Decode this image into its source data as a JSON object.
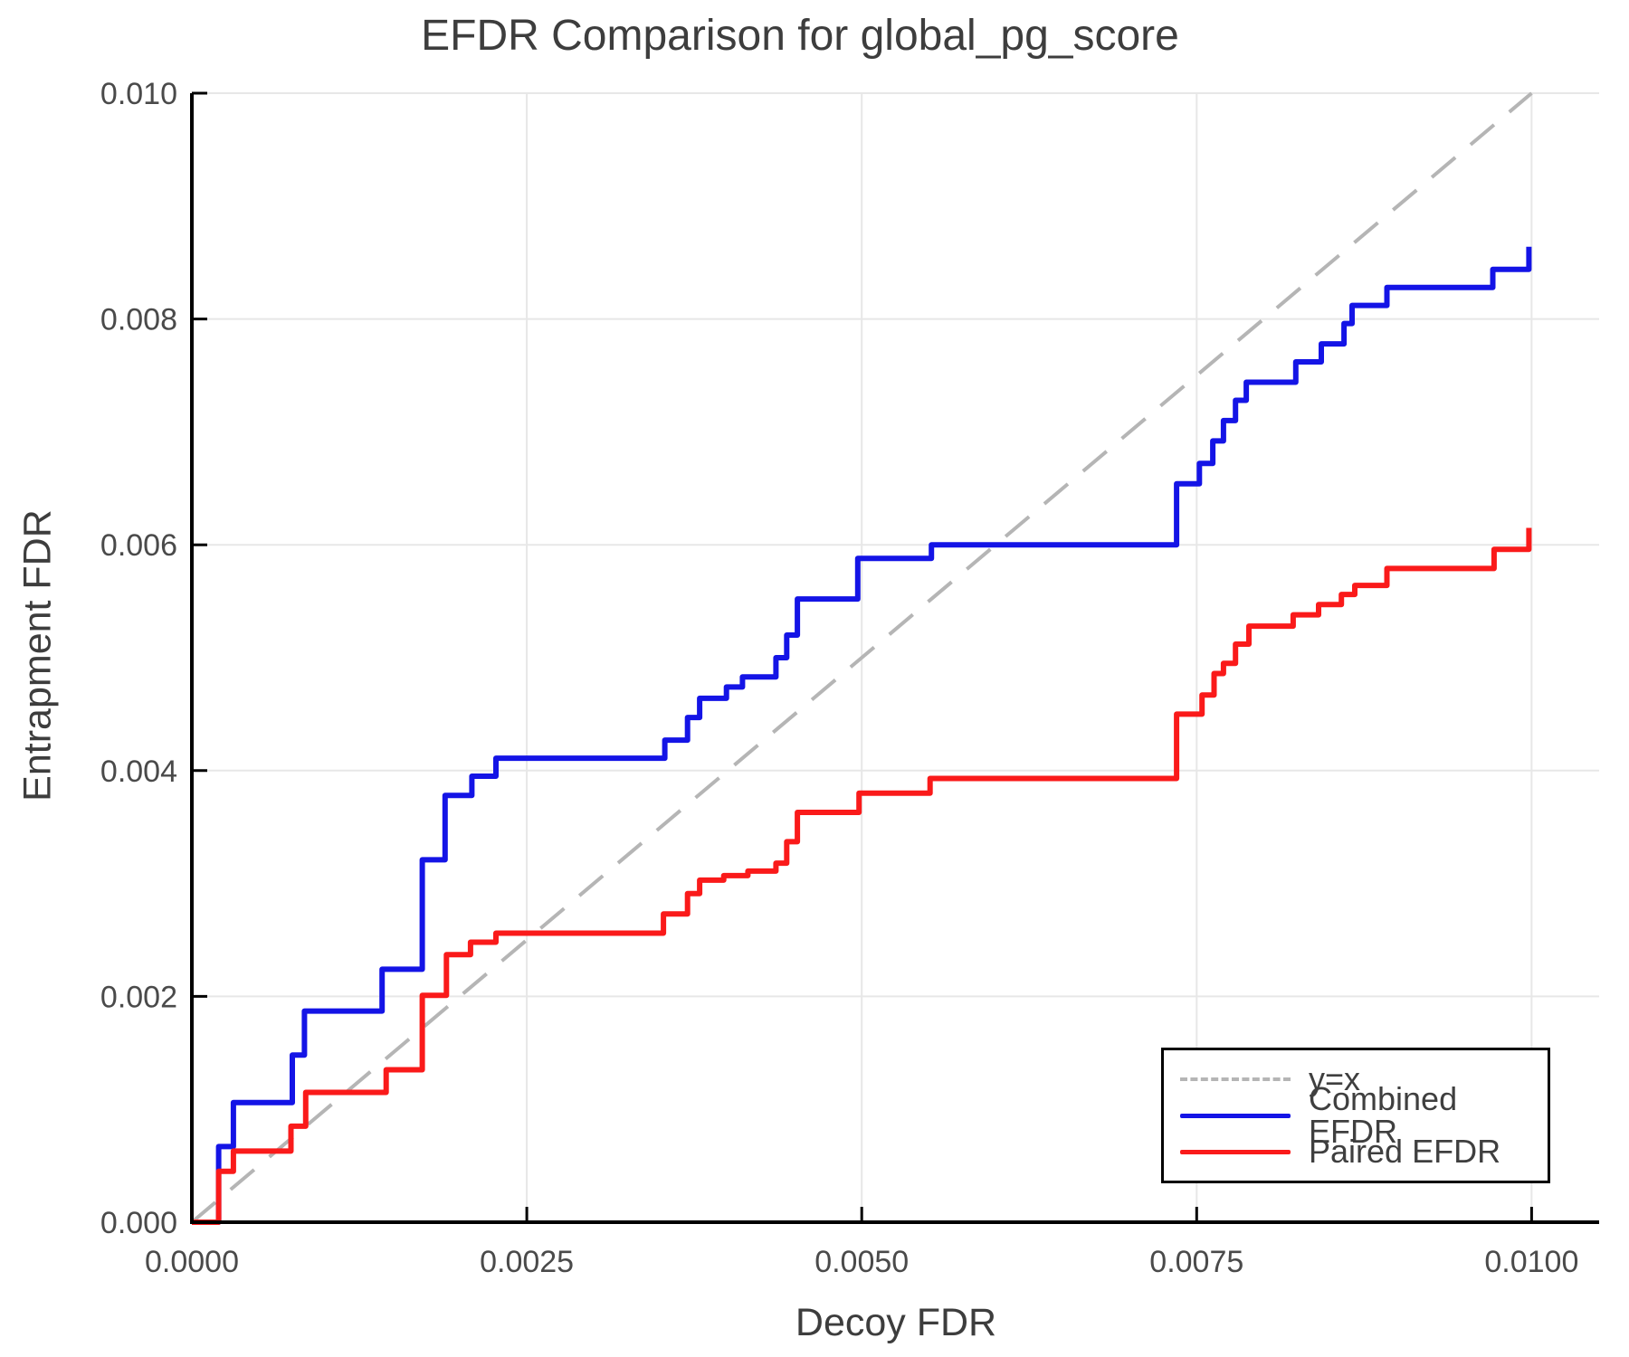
{
  "chart_data": {
    "type": "line",
    "subtype": "step",
    "title": "EFDR Comparison for global_pg_score",
    "xlabel": "Decoy FDR",
    "ylabel": "Entrapment FDR",
    "xlim": [
      0.0,
      0.010504
    ],
    "ylim": [
      0.0,
      0.01
    ],
    "grid": true,
    "legend_position": "lower right",
    "x_ticks": {
      "values": [
        0.0,
        0.0025,
        0.005,
        0.0075,
        0.01
      ],
      "labels": [
        "0.0000",
        "0.0025",
        "0.0050",
        "0.0075",
        "0.0100"
      ]
    },
    "y_ticks": {
      "values": [
        0.0,
        0.002,
        0.004,
        0.006,
        0.008,
        0.01
      ],
      "labels": [
        "0.000",
        "0.002",
        "0.004",
        "0.006",
        "0.008",
        "0.010"
      ]
    },
    "colors": {
      "identity_line": "#b5b5b5",
      "combined": "#1414e6",
      "paired": "#fa1a1a",
      "grid": "#e7e7e7",
      "spine": "#000000",
      "tick_text": "#4a4a4a"
    },
    "series": [
      {
        "name": "y=x",
        "style": "dashed",
        "color_key": "identity_line",
        "points": [
          [
            0.0,
            0.0
          ],
          [
            0.01,
            0.01
          ]
        ]
      },
      {
        "name": "Combined EFDR",
        "style": "solid",
        "color_key": "combined",
        "points": [
          [
            0.0,
            0.0
          ],
          [
            0.0002,
            0.0
          ],
          [
            0.0002,
            0.00067
          ],
          [
            0.00031,
            0.00067
          ],
          [
            0.00031,
            0.00106
          ],
          [
            0.00075,
            0.00106
          ],
          [
            0.00075,
            0.00148
          ],
          [
            0.00084,
            0.00148
          ],
          [
            0.00084,
            0.00187
          ],
          [
            0.00142,
            0.00187
          ],
          [
            0.00142,
            0.00224
          ],
          [
            0.00172,
            0.00224
          ],
          [
            0.00172,
            0.00321
          ],
          [
            0.00189,
            0.00321
          ],
          [
            0.00189,
            0.00378
          ],
          [
            0.00209,
            0.00378
          ],
          [
            0.00209,
            0.00395
          ],
          [
            0.00227,
            0.00395
          ],
          [
            0.00227,
            0.00411
          ],
          [
            0.00353,
            0.00411
          ],
          [
            0.00353,
            0.00427
          ],
          [
            0.0037,
            0.00427
          ],
          [
            0.0037,
            0.00447
          ],
          [
            0.00379,
            0.00447
          ],
          [
            0.00379,
            0.00464
          ],
          [
            0.00399,
            0.00464
          ],
          [
            0.00399,
            0.00474
          ],
          [
            0.00411,
            0.00474
          ],
          [
            0.00411,
            0.00483
          ],
          [
            0.00436,
            0.00483
          ],
          [
            0.00436,
            0.005
          ],
          [
            0.00444,
            0.005
          ],
          [
            0.00444,
            0.0052
          ],
          [
            0.00452,
            0.0052
          ],
          [
            0.00452,
            0.00552
          ],
          [
            0.00497,
            0.00552
          ],
          [
            0.00497,
            0.00588
          ],
          [
            0.00552,
            0.00588
          ],
          [
            0.00552,
            0.006
          ],
          [
            0.00735,
            0.006
          ],
          [
            0.00735,
            0.00654
          ],
          [
            0.00752,
            0.00654
          ],
          [
            0.00752,
            0.00672
          ],
          [
            0.00762,
            0.00672
          ],
          [
            0.00762,
            0.00692
          ],
          [
            0.0077,
            0.00692
          ],
          [
            0.0077,
            0.0071
          ],
          [
            0.00779,
            0.0071
          ],
          [
            0.00779,
            0.00728
          ],
          [
            0.00787,
            0.00728
          ],
          [
            0.00787,
            0.00744
          ],
          [
            0.00824,
            0.00744
          ],
          [
            0.00824,
            0.00762
          ],
          [
            0.00843,
            0.00762
          ],
          [
            0.00843,
            0.00778
          ],
          [
            0.0086,
            0.00778
          ],
          [
            0.0086,
            0.00796
          ],
          [
            0.00866,
            0.00796
          ],
          [
            0.00866,
            0.00812
          ],
          [
            0.00892,
            0.00812
          ],
          [
            0.00892,
            0.00828
          ],
          [
            0.00971,
            0.00828
          ],
          [
            0.00971,
            0.00844
          ],
          [
            0.00998,
            0.00844
          ],
          [
            0.00998,
            0.00864
          ]
        ]
      },
      {
        "name": "Paired EFDR",
        "style": "solid",
        "color_key": "paired",
        "points": [
          [
            0.0,
            0.0
          ],
          [
            0.0002,
            0.0
          ],
          [
            0.0002,
            0.00045
          ],
          [
            0.00031,
            0.00045
          ],
          [
            0.00031,
            0.00063
          ],
          [
            0.00074,
            0.00063
          ],
          [
            0.00074,
            0.00085
          ],
          [
            0.00085,
            0.00085
          ],
          [
            0.00085,
            0.00115
          ],
          [
            0.00145,
            0.00115
          ],
          [
            0.00145,
            0.00135
          ],
          [
            0.00172,
            0.00135
          ],
          [
            0.00172,
            0.00201
          ],
          [
            0.0019,
            0.00201
          ],
          [
            0.0019,
            0.00237
          ],
          [
            0.00208,
            0.00237
          ],
          [
            0.00208,
            0.00248
          ],
          [
            0.00227,
            0.00248
          ],
          [
            0.00227,
            0.00256
          ],
          [
            0.00352,
            0.00256
          ],
          [
            0.00352,
            0.00273
          ],
          [
            0.0037,
            0.00273
          ],
          [
            0.0037,
            0.00291
          ],
          [
            0.00379,
            0.00291
          ],
          [
            0.00379,
            0.00303
          ],
          [
            0.00397,
            0.00303
          ],
          [
            0.00397,
            0.00307
          ],
          [
            0.00415,
            0.00307
          ],
          [
            0.00415,
            0.00311
          ],
          [
            0.00436,
            0.00311
          ],
          [
            0.00436,
            0.00318
          ],
          [
            0.00444,
            0.00318
          ],
          [
            0.00444,
            0.00337
          ],
          [
            0.00452,
            0.00337
          ],
          [
            0.00452,
            0.00363
          ],
          [
            0.00498,
            0.00363
          ],
          [
            0.00498,
            0.0038
          ],
          [
            0.00551,
            0.0038
          ],
          [
            0.00551,
            0.00393
          ],
          [
            0.00735,
            0.00393
          ],
          [
            0.00735,
            0.0045
          ],
          [
            0.00754,
            0.0045
          ],
          [
            0.00754,
            0.00467
          ],
          [
            0.00763,
            0.00467
          ],
          [
            0.00763,
            0.00486
          ],
          [
            0.0077,
            0.00486
          ],
          [
            0.0077,
            0.00495
          ],
          [
            0.00779,
            0.00495
          ],
          [
            0.00779,
            0.00512
          ],
          [
            0.00789,
            0.00512
          ],
          [
            0.00789,
            0.00528
          ],
          [
            0.00822,
            0.00528
          ],
          [
            0.00822,
            0.00538
          ],
          [
            0.00841,
            0.00538
          ],
          [
            0.00841,
            0.00547
          ],
          [
            0.00858,
            0.00547
          ],
          [
            0.00858,
            0.00556
          ],
          [
            0.00868,
            0.00556
          ],
          [
            0.00868,
            0.00564
          ],
          [
            0.00892,
            0.00564
          ],
          [
            0.00892,
            0.00579
          ],
          [
            0.00972,
            0.00579
          ],
          [
            0.00972,
            0.00596
          ],
          [
            0.00998,
            0.00596
          ],
          [
            0.00998,
            0.00615
          ]
        ]
      }
    ],
    "legend": {
      "items": [
        {
          "label": "y=x"
        },
        {
          "label": "Combined EFDR"
        },
        {
          "label": "Paired EFDR"
        }
      ]
    }
  }
}
